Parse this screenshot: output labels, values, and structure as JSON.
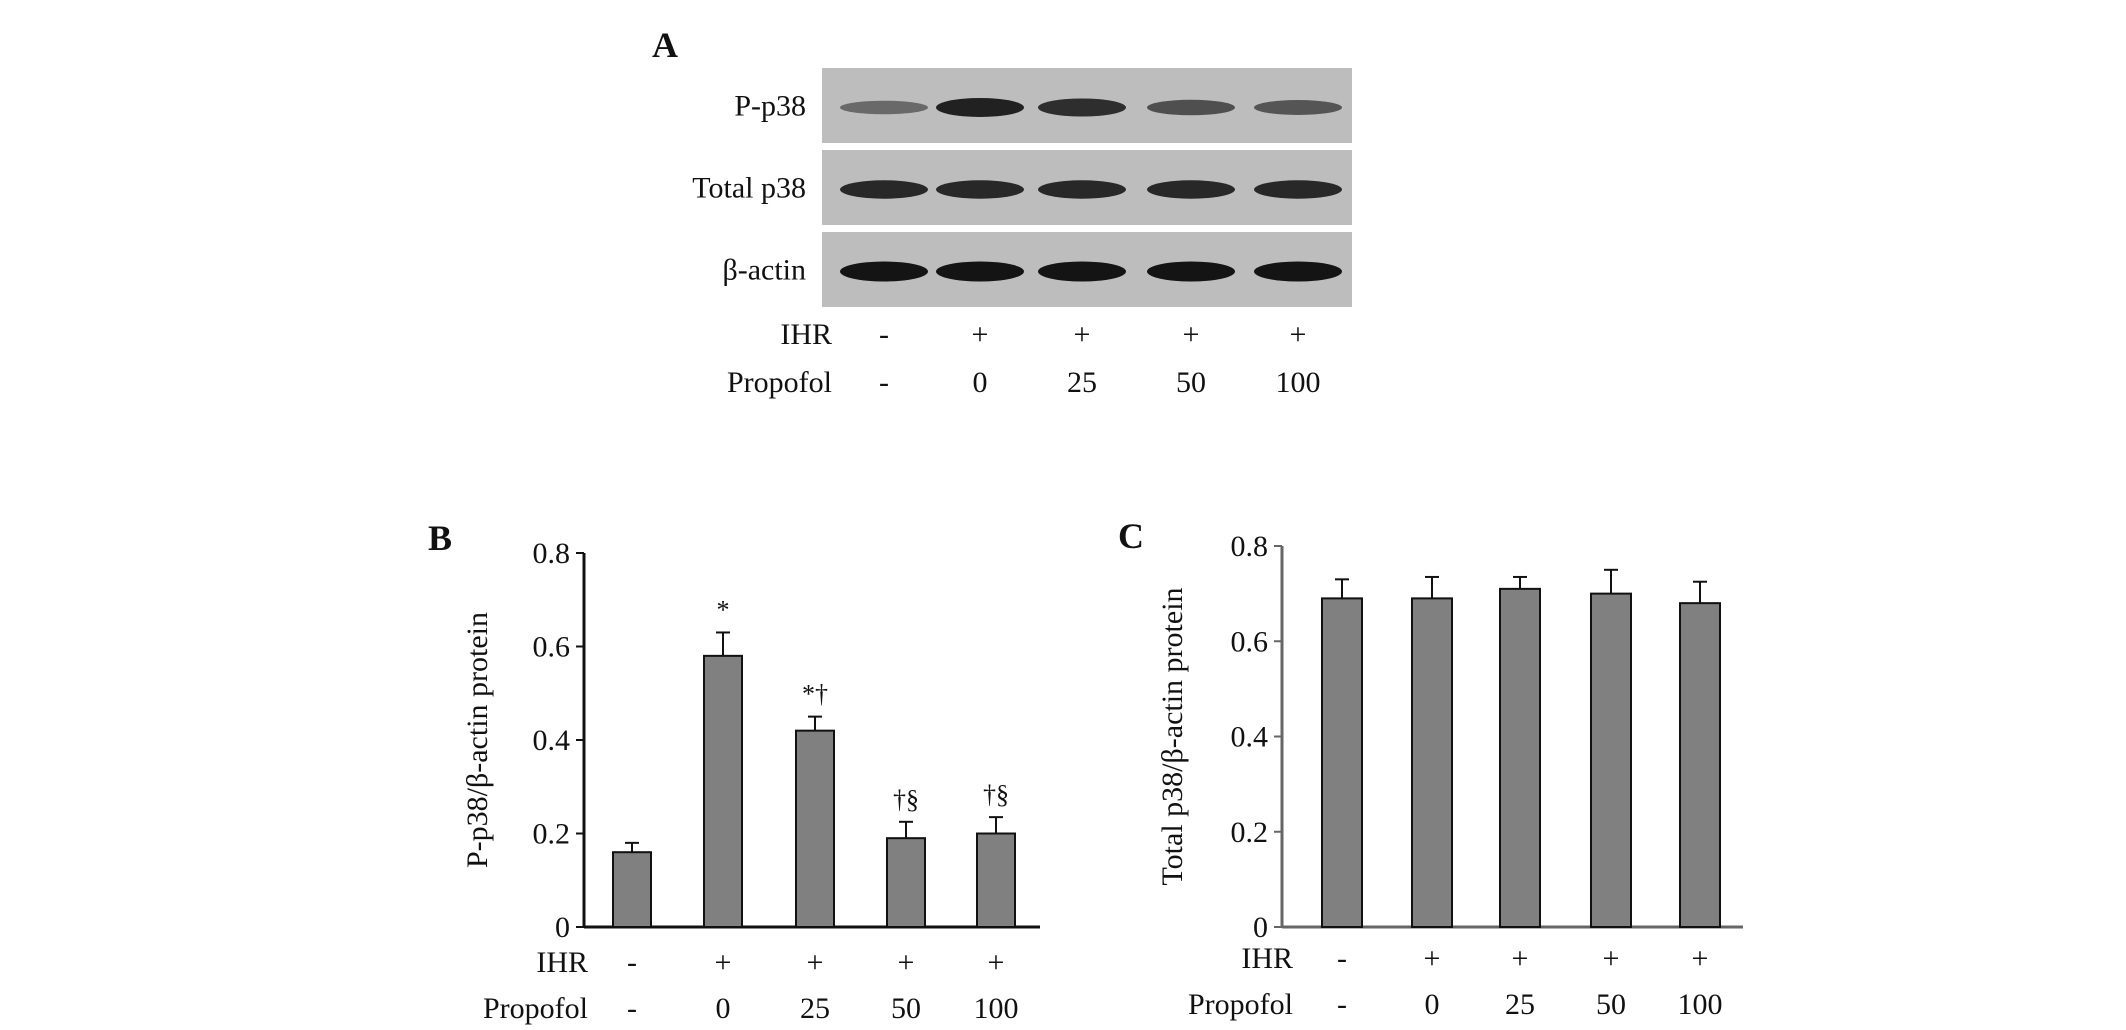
{
  "panel_a": {
    "letter": "A",
    "blot_rows": [
      {
        "label": "P-p38",
        "intensity": [
          0.35,
          0.9,
          0.8,
          0.55,
          0.5
        ]
      },
      {
        "label": "Total p38",
        "intensity": [
          0.85,
          0.85,
          0.85,
          0.85,
          0.85
        ]
      },
      {
        "label": "β-actin",
        "intensity": [
          1.0,
          1.0,
          1.0,
          1.0,
          1.0
        ]
      }
    ],
    "ihr_label": "IHR",
    "propofol_label": "Propofol",
    "ihr_values": [
      "-",
      "+",
      "+",
      "+",
      "+"
    ],
    "propofol_values": [
      "-",
      "0",
      "25",
      "50",
      "100"
    ]
  },
  "chart_data": [
    {
      "panel": "B",
      "type": "bar",
      "categories": [
        "-/-",
        "+/0",
        "+/25",
        "+/50",
        "+/100"
      ],
      "row_labels": {
        "ihr": "IHR",
        "propofol": "Propofol"
      },
      "ihr_values": [
        "-",
        "+",
        "+",
        "+",
        "+"
      ],
      "propofol_values": [
        "-",
        "0",
        "25",
        "50",
        "100"
      ],
      "values": [
        0.16,
        0.58,
        0.42,
        0.19,
        0.2
      ],
      "errors": [
        0.02,
        0.05,
        0.03,
        0.035,
        0.035
      ],
      "annotations": [
        "",
        "*",
        "*†",
        "†§",
        "†§"
      ],
      "ylabel": "P-p38/β-actin protein",
      "xlabel": "",
      "ylim": [
        0,
        0.8
      ],
      "yticks": [
        "0",
        "0.2",
        "0.4",
        "0.6",
        "0.8"
      ],
      "bar_color": "#808080",
      "grid": false
    },
    {
      "panel": "C",
      "type": "bar",
      "categories": [
        "-/-",
        "+/0",
        "+/25",
        "+/50",
        "+/100"
      ],
      "row_labels": {
        "ihr": "IHR",
        "propofol": "Propofol"
      },
      "ihr_values": [
        "-",
        "+",
        "+",
        "+",
        "+"
      ],
      "propofol_values": [
        "-",
        "0",
        "25",
        "50",
        "100"
      ],
      "values": [
        0.69,
        0.69,
        0.71,
        0.7,
        0.68
      ],
      "errors": [
        0.04,
        0.045,
        0.025,
        0.05,
        0.045
      ],
      "annotations": [
        "",
        "",
        "",
        "",
        ""
      ],
      "ylabel": "Total p38/β-actin protein",
      "xlabel": "",
      "ylim": [
        0,
        0.8
      ],
      "yticks": [
        "0",
        "0.2",
        "0.4",
        "0.6",
        "0.8"
      ],
      "bar_color": "#808080",
      "grid": false
    }
  ]
}
